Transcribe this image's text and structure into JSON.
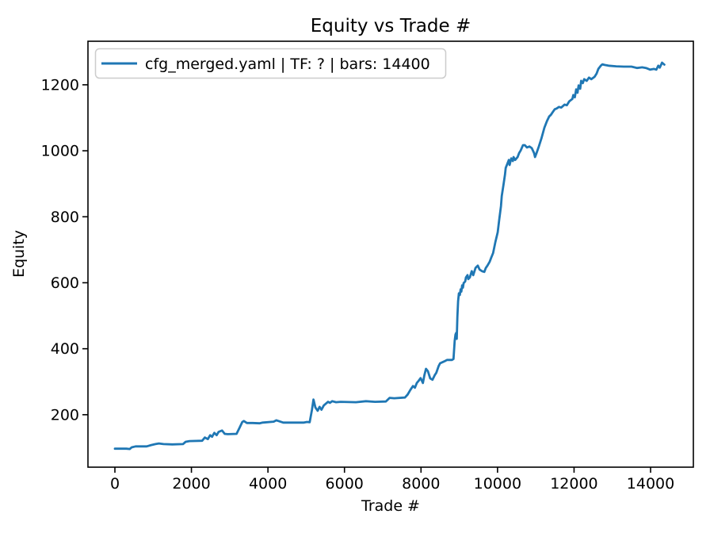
{
  "figure": {
    "background": "#ffffff",
    "spine_color": "#000000"
  },
  "chart_data": {
    "type": "line",
    "title": "Equity vs Trade #",
    "xlabel": "Trade #",
    "ylabel": "Equity",
    "xlim": [
      -704,
      15118
    ],
    "ylim": [
      41,
      1332
    ],
    "xticks": [
      0,
      2000,
      4000,
      6000,
      8000,
      10000,
      12000,
      14000
    ],
    "yticks": [
      200,
      400,
      600,
      800,
      1000,
      1200
    ],
    "grid": false,
    "legend": {
      "position": "upper left",
      "entries": [
        {
          "label": "cfg_merged.yaml | TF: ? | bars: 14400",
          "color": "#1f77b4"
        }
      ]
    },
    "series": [
      {
        "name": "cfg_merged.yaml | TF: ? | bars: 14400",
        "color": "#1f77b4",
        "linewidth": 2.8,
        "points": [
          [
            0,
            97
          ],
          [
            300,
            97
          ],
          [
            390,
            96
          ],
          [
            440,
            101
          ],
          [
            540,
            104
          ],
          [
            830,
            104
          ],
          [
            950,
            108
          ],
          [
            1060,
            111
          ],
          [
            1150,
            113
          ],
          [
            1270,
            111
          ],
          [
            1500,
            110
          ],
          [
            1780,
            111
          ],
          [
            1850,
            118
          ],
          [
            1950,
            120
          ],
          [
            2280,
            121
          ],
          [
            2350,
            131
          ],
          [
            2430,
            126
          ],
          [
            2490,
            138
          ],
          [
            2540,
            133
          ],
          [
            2600,
            145
          ],
          [
            2660,
            138
          ],
          [
            2710,
            148
          ],
          [
            2800,
            152
          ],
          [
            2870,
            142
          ],
          [
            2950,
            141
          ],
          [
            3180,
            142
          ],
          [
            3260,
            161
          ],
          [
            3330,
            178
          ],
          [
            3370,
            181
          ],
          [
            3450,
            175
          ],
          [
            3600,
            175
          ],
          [
            3780,
            174
          ],
          [
            3860,
            176
          ],
          [
            4150,
            179
          ],
          [
            4220,
            183
          ],
          [
            4300,
            180
          ],
          [
            4400,
            176
          ],
          [
            4940,
            176
          ],
          [
            5020,
            178
          ],
          [
            5090,
            177
          ],
          [
            5150,
            215
          ],
          [
            5190,
            246
          ],
          [
            5240,
            222
          ],
          [
            5300,
            212
          ],
          [
            5350,
            224
          ],
          [
            5400,
            215
          ],
          [
            5460,
            228
          ],
          [
            5520,
            234
          ],
          [
            5570,
            239
          ],
          [
            5620,
            236
          ],
          [
            5680,
            241
          ],
          [
            5780,
            238
          ],
          [
            5900,
            239
          ],
          [
            6300,
            238
          ],
          [
            6560,
            241
          ],
          [
            6800,
            239
          ],
          [
            7080,
            240
          ],
          [
            7180,
            251
          ],
          [
            7300,
            250
          ],
          [
            7580,
            252
          ],
          [
            7650,
            261
          ],
          [
            7720,
            275
          ],
          [
            7790,
            287
          ],
          [
            7840,
            282
          ],
          [
            7890,
            296
          ],
          [
            7940,
            303
          ],
          [
            7990,
            311
          ],
          [
            8050,
            296
          ],
          [
            8090,
            320
          ],
          [
            8130,
            339
          ],
          [
            8180,
            332
          ],
          [
            8240,
            310
          ],
          [
            8300,
            306
          ],
          [
            8360,
            320
          ],
          [
            8400,
            327
          ],
          [
            8460,
            347
          ],
          [
            8500,
            356
          ],
          [
            8560,
            359
          ],
          [
            8630,
            363
          ],
          [
            8680,
            366
          ],
          [
            8810,
            366
          ],
          [
            8850,
            369
          ],
          [
            8880,
            424
          ],
          [
            8900,
            443
          ],
          [
            8920,
            448
          ],
          [
            8935,
            430
          ],
          [
            8950,
            496
          ],
          [
            8970,
            544
          ],
          [
            8990,
            568
          ],
          [
            9015,
            563
          ],
          [
            9035,
            580
          ],
          [
            9055,
            573
          ],
          [
            9075,
            592
          ],
          [
            9095,
            585
          ],
          [
            9115,
            599
          ],
          [
            9155,
            604
          ],
          [
            9175,
            616
          ],
          [
            9215,
            623
          ],
          [
            9235,
            611
          ],
          [
            9275,
            616
          ],
          [
            9325,
            635
          ],
          [
            9365,
            623
          ],
          [
            9425,
            645
          ],
          [
            9485,
            652
          ],
          [
            9530,
            640
          ],
          [
            9595,
            635
          ],
          [
            9655,
            633
          ],
          [
            9695,
            645
          ],
          [
            9735,
            652
          ],
          [
            9795,
            664
          ],
          [
            9835,
            676
          ],
          [
            9885,
            690
          ],
          [
            9945,
            724
          ],
          [
            10005,
            753
          ],
          [
            10045,
            791
          ],
          [
            10090,
            832
          ],
          [
            10110,
            863
          ],
          [
            10155,
            897
          ],
          [
            10195,
            928
          ],
          [
            10215,
            948
          ],
          [
            10255,
            960
          ],
          [
            10295,
            972
          ],
          [
            10315,
            957
          ],
          [
            10360,
            977
          ],
          [
            10400,
            969
          ],
          [
            10420,
            981
          ],
          [
            10460,
            972
          ],
          [
            10525,
            981
          ],
          [
            10565,
            993
          ],
          [
            10605,
            1001
          ],
          [
            10665,
            1017
          ],
          [
            10710,
            1017
          ],
          [
            10770,
            1010
          ],
          [
            10835,
            1013
          ],
          [
            10895,
            1008
          ],
          [
            10955,
            993
          ],
          [
            10980,
            981
          ],
          [
            11020,
            993
          ],
          [
            11080,
            1013
          ],
          [
            11145,
            1037
          ],
          [
            11225,
            1070
          ],
          [
            11290,
            1090
          ],
          [
            11350,
            1104
          ],
          [
            11395,
            1109
          ],
          [
            11435,
            1116
          ],
          [
            11495,
            1126
          ],
          [
            11540,
            1128
          ],
          [
            11605,
            1133
          ],
          [
            11665,
            1131
          ],
          [
            11750,
            1140
          ],
          [
            11810,
            1138
          ],
          [
            11875,
            1150
          ],
          [
            11955,
            1157
          ],
          [
            11980,
            1169
          ],
          [
            12020,
            1162
          ],
          [
            12055,
            1186
          ],
          [
            12090,
            1176
          ],
          [
            12120,
            1198
          ],
          [
            12160,
            1188
          ],
          [
            12185,
            1212
          ],
          [
            12230,
            1205
          ],
          [
            12265,
            1217
          ],
          [
            12330,
            1212
          ],
          [
            12390,
            1222
          ],
          [
            12450,
            1217
          ],
          [
            12535,
            1224
          ],
          [
            12590,
            1234
          ],
          [
            12635,
            1248
          ],
          [
            12700,
            1258
          ],
          [
            12740,
            1262
          ],
          [
            12800,
            1260
          ],
          [
            12900,
            1258
          ],
          [
            13100,
            1256
          ],
          [
            13300,
            1255
          ],
          [
            13500,
            1255
          ],
          [
            13650,
            1251
          ],
          [
            13780,
            1253
          ],
          [
            13880,
            1251
          ],
          [
            13990,
            1246
          ],
          [
            14090,
            1248
          ],
          [
            14150,
            1246
          ],
          [
            14200,
            1258
          ],
          [
            14240,
            1252
          ],
          [
            14300,
            1267
          ],
          [
            14360,
            1261
          ]
        ]
      }
    ]
  }
}
